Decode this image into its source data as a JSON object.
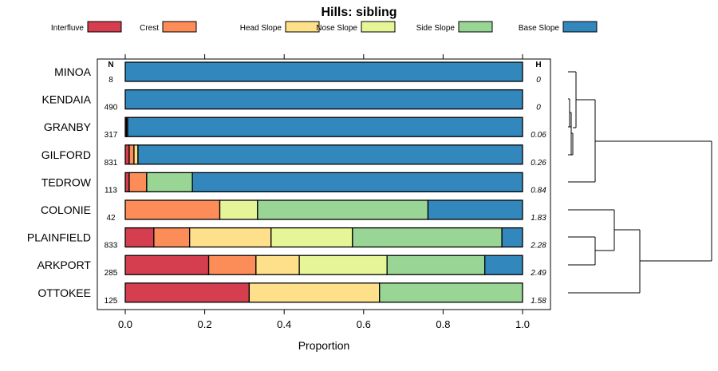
{
  "chart_data": {
    "type": "stacked-bar-horizontal",
    "title": "Hills: sibling",
    "xlabel": "Proportion",
    "xlim": [
      0,
      1
    ],
    "xticks": [
      "0.0",
      "0.2",
      "0.4",
      "0.6",
      "0.8",
      "1.0"
    ],
    "n_header": "N",
    "h_header": "H",
    "legend": [
      {
        "name": "Interfluve",
        "color": "#D53E4F"
      },
      {
        "name": "Crest",
        "color": "#FC8D59"
      },
      {
        "name": "Head Slope",
        "color": "#FEE08B"
      },
      {
        "name": "Nose Slope",
        "color": "#E6F598"
      },
      {
        "name": "Side Slope",
        "color": "#99D594"
      },
      {
        "name": "Base Slope",
        "color": "#3288BD"
      }
    ],
    "rows": [
      {
        "name": "MINOA",
        "n": "8",
        "h": "0",
        "values": [
          0,
          0,
          0,
          0,
          0,
          1.0
        ]
      },
      {
        "name": "KENDAIA",
        "n": "490",
        "h": "0",
        "values": [
          0,
          0,
          0,
          0,
          0,
          1.0
        ]
      },
      {
        "name": "GRANBY",
        "n": "317",
        "h": "0.06",
        "values": [
          0.003,
          0.003,
          0,
          0,
          0,
          0.994
        ]
      },
      {
        "name": "GILFORD",
        "n": "831",
        "h": "0.26",
        "values": [
          0.01,
          0.012,
          0.01,
          0,
          0,
          0.968
        ]
      },
      {
        "name": "TEDROW",
        "n": "113",
        "h": "0.84",
        "values": [
          0.01,
          0.044,
          0,
          0,
          0.115,
          0.831
        ]
      },
      {
        "name": "COLONIE",
        "n": "42",
        "h": "1.83",
        "values": [
          0,
          0.238,
          0,
          0.095,
          0.429,
          0.238
        ]
      },
      {
        "name": "PLAINFIELD",
        "n": "833",
        "h": "2.28",
        "values": [
          0.072,
          0.09,
          0.205,
          0.205,
          0.376,
          0.052
        ]
      },
      {
        "name": "ARKPORT",
        "n": "285",
        "h": "2.49",
        "values": [
          0.21,
          0.119,
          0.109,
          0.221,
          0.246,
          0.095
        ]
      },
      {
        "name": "OTTOKEE",
        "n": "125",
        "h": "1.58",
        "values": [
          0.312,
          0,
          0.328,
          0,
          0.36,
          0
        ]
      }
    ]
  }
}
